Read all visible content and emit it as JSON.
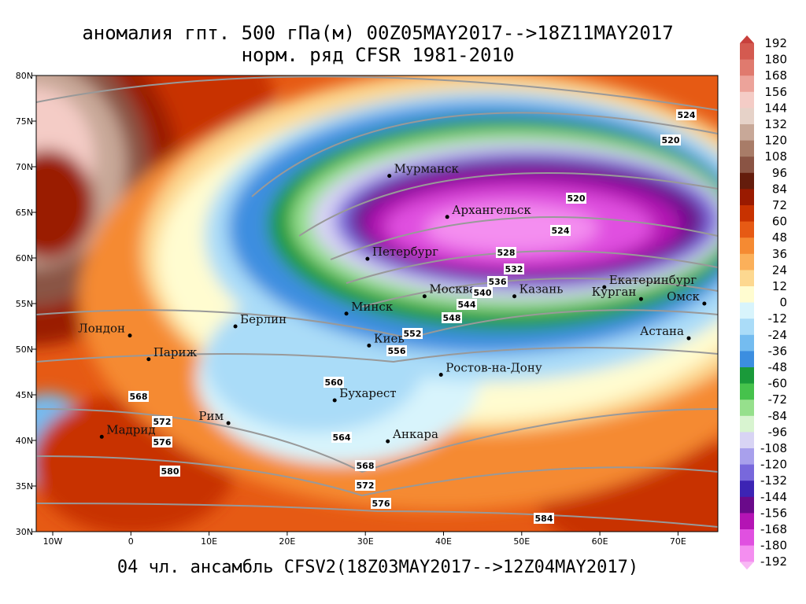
{
  "header": {
    "title_lines": [
      "аномалия гпт. 500 гПа(м) 00Z05MAY2017-->18Z11MAY2017",
      "норм. ряд CFSR 1981-2010"
    ]
  },
  "footer": "04 чл. ансамбль CFSV2(18Z03MAY2017-->12Z04MAY2017)",
  "map": {
    "lat_labels": [
      "80N",
      "75N",
      "70N",
      "65N",
      "60N",
      "55N",
      "50N",
      "45N",
      "40N",
      "35N",
      "30N"
    ],
    "lon_labels": [
      "10W",
      "0",
      "10E",
      "20E",
      "30E",
      "40E",
      "50E",
      "60E",
      "70E"
    ],
    "cities": [
      {
        "name": "Мурманск",
        "lon": 33.1,
        "lat": 69.0
      },
      {
        "name": "Архангельск",
        "lon": 40.5,
        "lat": 64.5
      },
      {
        "name": "Петербург",
        "lon": 30.3,
        "lat": 59.9
      },
      {
        "name": "Москва",
        "lon": 37.6,
        "lat": 55.8
      },
      {
        "name": "Казань",
        "lon": 49.1,
        "lat": 55.8
      },
      {
        "name": "Екатеринбург",
        "lon": 60.6,
        "lat": 56.8
      },
      {
        "name": "Курган",
        "lon": 65.3,
        "lat": 55.5
      },
      {
        "name": "Омск",
        "lon": 73.4,
        "lat": 55.0
      },
      {
        "name": "Астана",
        "lon": 71.4,
        "lat": 51.2
      },
      {
        "name": "Минск",
        "lon": 27.6,
        "lat": 53.9
      },
      {
        "name": "Берлин",
        "lon": 13.4,
        "lat": 52.5
      },
      {
        "name": "Лондон",
        "lon": -0.1,
        "lat": 51.5
      },
      {
        "name": "Париж",
        "lon": 2.3,
        "lat": 48.9
      },
      {
        "name": "Киев",
        "lon": 30.5,
        "lat": 50.4
      },
      {
        "name": "Ростов-на-Дону",
        "lon": 39.7,
        "lat": 47.2
      },
      {
        "name": "Бухарест",
        "lon": 26.1,
        "lat": 44.4
      },
      {
        "name": "Рим",
        "lon": 12.5,
        "lat": 41.9
      },
      {
        "name": "Мадрид",
        "lon": -3.7,
        "lat": 40.4
      },
      {
        "name": "Анкара",
        "lon": 32.9,
        "lat": 39.9
      }
    ],
    "contour_labels": [
      "524",
      "520",
      "520",
      "524",
      "528",
      "532",
      "536",
      "540",
      "544",
      "548",
      "552",
      "556",
      "560",
      "564",
      "568",
      "572",
      "576",
      "580",
      "568",
      "572",
      "576",
      "584"
    ]
  },
  "colorbar": {
    "labels": [
      "192",
      "180",
      "168",
      "156",
      "144",
      "132",
      "120",
      "108",
      "96",
      "84",
      "72",
      "60",
      "48",
      "36",
      "24",
      "12",
      "0",
      "-12",
      "-24",
      "-36",
      "-48",
      "-60",
      "-72",
      "-84",
      "-96",
      "-108",
      "-120",
      "-132",
      "-144",
      "-156",
      "-168",
      "-180",
      "-192"
    ],
    "colors": [
      "#c8403c",
      "#d45a50",
      "#e07a6e",
      "#eca39a",
      "#f4ccc6",
      "#e6d2c8",
      "#c8a898",
      "#a87c68",
      "#8a5444",
      "#641c0c",
      "#9a1a00",
      "#c83200",
      "#e65a14",
      "#f58a32",
      "#fbb05a",
      "#fdd890",
      "#fffcd0",
      "#d8f4fc",
      "#aadcf8",
      "#74bcf0",
      "#3c8ee0",
      "#1a9a3a",
      "#46c24c",
      "#96e08c",
      "#d8f4d0",
      "#d8d4f4",
      "#a8a0ec",
      "#7868dc",
      "#3c24b4",
      "#6a0a8a",
      "#b414b4",
      "#e050e0",
      "#f48ef0",
      "#f8b8f4"
    ]
  }
}
